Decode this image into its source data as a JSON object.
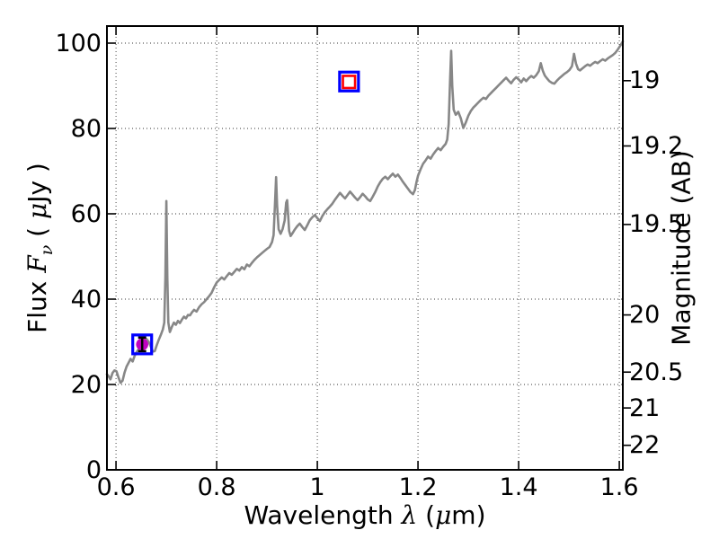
{
  "chart_data": {
    "type": "line",
    "title": "",
    "xlabel_parts": [
      "Wavelength ",
      "λ",
      " (",
      "μ",
      "m)"
    ],
    "ylabel_left_parts": [
      "Flux ",
      "F",
      "ν",
      " ( ",
      "μ",
      "Jy )"
    ],
    "ylabel_right": "Magnitude (AB)",
    "xlim": [
      0.582,
      1.607
    ],
    "ylim_flux": [
      0,
      104
    ],
    "grid": "dotted",
    "legend": "none",
    "x_ticks": [
      {
        "value": 0.6,
        "label": "0.6"
      },
      {
        "value": 0.8,
        "label": "0.8"
      },
      {
        "value": 1.0,
        "label": "1"
      },
      {
        "value": 1.2,
        "label": "1.2"
      },
      {
        "value": 1.4,
        "label": "1.4"
      },
      {
        "value": 1.6,
        "label": "1.6"
      }
    ],
    "y_ticks_left": [
      {
        "value": 0,
        "label": "0"
      },
      {
        "value": 20,
        "label": "20"
      },
      {
        "value": 40,
        "label": "40"
      },
      {
        "value": 60,
        "label": "60"
      },
      {
        "value": 80,
        "label": "80"
      },
      {
        "value": 100,
        "label": "100"
      }
    ],
    "y_ticks_right": [
      {
        "label": "19",
        "flux": 91.2
      },
      {
        "label": "19.2",
        "flux": 75.9
      },
      {
        "label": "19.5",
        "flux": 57.5
      },
      {
        "label": "20",
        "flux": 36.3
      },
      {
        "label": "20.5",
        "flux": 22.9
      },
      {
        "label": "21",
        "flux": 14.5
      },
      {
        "label": "22",
        "flux": 5.75
      }
    ],
    "colors": {
      "spectrum": "#878787",
      "frame": "#000000",
      "grid": "#000000",
      "blue_square": "#0000ff",
      "magenta_circle": "#bf00bf",
      "red_square": "#ff0000",
      "errorbar": "#000000"
    },
    "series": [
      {
        "name": "spectrum",
        "type": "line",
        "color": "#878787",
        "points": [
          [
            0.582,
            22.4
          ],
          [
            0.585,
            22.0
          ],
          [
            0.589,
            21.2
          ],
          [
            0.593,
            22.7
          ],
          [
            0.597,
            23.3
          ],
          [
            0.601,
            23.1
          ],
          [
            0.605,
            21.6
          ],
          [
            0.609,
            20.4
          ],
          [
            0.613,
            20.9
          ],
          [
            0.617,
            22.8
          ],
          [
            0.621,
            24.2
          ],
          [
            0.625,
            25.1
          ],
          [
            0.629,
            26.0
          ],
          [
            0.633,
            25.4
          ],
          [
            0.637,
            26.7
          ],
          [
            0.641,
            27.6
          ],
          [
            0.645,
            28.3
          ],
          [
            0.649,
            29.2
          ],
          [
            0.653,
            30.1
          ],
          [
            0.657,
            30.8
          ],
          [
            0.661,
            30.6
          ],
          [
            0.665,
            30.0
          ],
          [
            0.669,
            28.9
          ],
          [
            0.673,
            27.7
          ],
          [
            0.677,
            27.8
          ],
          [
            0.681,
            29.2
          ],
          [
            0.685,
            30.5
          ],
          [
            0.689,
            31.6
          ],
          [
            0.693,
            32.9
          ],
          [
            0.696,
            34.5
          ],
          [
            0.698,
            45.0
          ],
          [
            0.7,
            63.0
          ],
          [
            0.702,
            45.0
          ],
          [
            0.704,
            34.5
          ],
          [
            0.707,
            32.3
          ],
          [
            0.711,
            33.5
          ],
          [
            0.715,
            34.5
          ],
          [
            0.719,
            34.0
          ],
          [
            0.723,
            34.9
          ],
          [
            0.727,
            34.4
          ],
          [
            0.731,
            35.2
          ],
          [
            0.735,
            35.9
          ],
          [
            0.739,
            35.5
          ],
          [
            0.743,
            36.3
          ],
          [
            0.747,
            36.2
          ],
          [
            0.751,
            36.9
          ],
          [
            0.755,
            37.5
          ],
          [
            0.76,
            37.1
          ],
          [
            0.765,
            38.1
          ],
          [
            0.77,
            38.8
          ],
          [
            0.775,
            39.3
          ],
          [
            0.78,
            40.0
          ],
          [
            0.785,
            40.7
          ],
          [
            0.79,
            41.5
          ],
          [
            0.795,
            42.8
          ],
          [
            0.8,
            43.9
          ],
          [
            0.805,
            44.5
          ],
          [
            0.81,
            45.1
          ],
          [
            0.815,
            44.6
          ],
          [
            0.82,
            45.4
          ],
          [
            0.825,
            46.1
          ],
          [
            0.83,
            45.7
          ],
          [
            0.835,
            46.4
          ],
          [
            0.84,
            47.1
          ],
          [
            0.845,
            46.7
          ],
          [
            0.85,
            47.5
          ],
          [
            0.855,
            47.0
          ],
          [
            0.86,
            48.1
          ],
          [
            0.865,
            47.7
          ],
          [
            0.87,
            48.5
          ],
          [
            0.875,
            49.2
          ],
          [
            0.88,
            49.8
          ],
          [
            0.885,
            50.3
          ],
          [
            0.89,
            50.8
          ],
          [
            0.895,
            51.3
          ],
          [
            0.9,
            51.8
          ],
          [
            0.905,
            52.2
          ],
          [
            0.91,
            53.4
          ],
          [
            0.913,
            55.0
          ],
          [
            0.916,
            62.5
          ],
          [
            0.918,
            68.6
          ],
          [
            0.92,
            62.0
          ],
          [
            0.923,
            56.4
          ],
          [
            0.927,
            55.3
          ],
          [
            0.931,
            56.4
          ],
          [
            0.935,
            58.4
          ],
          [
            0.938,
            62.6
          ],
          [
            0.94,
            63.2
          ],
          [
            0.942,
            59.8
          ],
          [
            0.944,
            56.0
          ],
          [
            0.947,
            54.8
          ],
          [
            0.951,
            55.5
          ],
          [
            0.955,
            56.3
          ],
          [
            0.96,
            57.1
          ],
          [
            0.965,
            57.7
          ],
          [
            0.97,
            56.9
          ],
          [
            0.975,
            56.2
          ],
          [
            0.98,
            57.3
          ],
          [
            0.985,
            58.5
          ],
          [
            0.99,
            59.2
          ],
          [
            0.995,
            59.7
          ],
          [
            1.0,
            59.0
          ],
          [
            1.005,
            58.3
          ],
          [
            1.01,
            59.5
          ],
          [
            1.015,
            60.4
          ],
          [
            1.02,
            61.1
          ],
          [
            1.025,
            61.7
          ],
          [
            1.03,
            62.4
          ],
          [
            1.035,
            63.3
          ],
          [
            1.04,
            64.1
          ],
          [
            1.045,
            64.9
          ],
          [
            1.05,
            64.2
          ],
          [
            1.055,
            63.6
          ],
          [
            1.06,
            64.4
          ],
          [
            1.065,
            65.2
          ],
          [
            1.07,
            64.5
          ],
          [
            1.075,
            63.8
          ],
          [
            1.08,
            63.2
          ],
          [
            1.085,
            63.9
          ],
          [
            1.09,
            64.7
          ],
          [
            1.095,
            64.1
          ],
          [
            1.1,
            63.4
          ],
          [
            1.105,
            63.0
          ],
          [
            1.11,
            64.0
          ],
          [
            1.115,
            65.1
          ],
          [
            1.12,
            66.4
          ],
          [
            1.125,
            67.4
          ],
          [
            1.13,
            68.2
          ],
          [
            1.135,
            68.7
          ],
          [
            1.14,
            68.1
          ],
          [
            1.145,
            68.8
          ],
          [
            1.15,
            69.4
          ],
          [
            1.155,
            68.7
          ],
          [
            1.16,
            69.2
          ],
          [
            1.165,
            68.4
          ],
          [
            1.17,
            67.5
          ],
          [
            1.175,
            66.7
          ],
          [
            1.18,
            65.9
          ],
          [
            1.185,
            65.1
          ],
          [
            1.19,
            64.6
          ],
          [
            1.194,
            65.6
          ],
          [
            1.197,
            67.4
          ],
          [
            1.2,
            68.9
          ],
          [
            1.205,
            70.4
          ],
          [
            1.21,
            71.7
          ],
          [
            1.215,
            72.5
          ],
          [
            1.22,
            73.4
          ],
          [
            1.225,
            72.9
          ],
          [
            1.23,
            73.9
          ],
          [
            1.235,
            74.7
          ],
          [
            1.24,
            75.4
          ],
          [
            1.245,
            74.9
          ],
          [
            1.25,
            75.7
          ],
          [
            1.255,
            76.4
          ],
          [
            1.258,
            77.4
          ],
          [
            1.261,
            81.0
          ],
          [
            1.264,
            92.0
          ],
          [
            1.266,
            98.2
          ],
          [
            1.268,
            90.0
          ],
          [
            1.271,
            84.4
          ],
          [
            1.275,
            83.2
          ],
          [
            1.28,
            83.9
          ],
          [
            1.285,
            82.4
          ],
          [
            1.29,
            80.1
          ],
          [
            1.295,
            81.4
          ],
          [
            1.3,
            83.0
          ],
          [
            1.305,
            84.1
          ],
          [
            1.31,
            84.9
          ],
          [
            1.315,
            85.5
          ],
          [
            1.32,
            86.1
          ],
          [
            1.325,
            86.7
          ],
          [
            1.33,
            87.2
          ],
          [
            1.335,
            86.9
          ],
          [
            1.34,
            87.7
          ],
          [
            1.345,
            88.3
          ],
          [
            1.35,
            88.9
          ],
          [
            1.355,
            89.5
          ],
          [
            1.36,
            90.1
          ],
          [
            1.365,
            90.7
          ],
          [
            1.37,
            91.3
          ],
          [
            1.375,
            91.9
          ],
          [
            1.38,
            91.2
          ],
          [
            1.385,
            90.6
          ],
          [
            1.39,
            91.4
          ],
          [
            1.395,
            92.0
          ],
          [
            1.4,
            91.5
          ],
          [
            1.405,
            90.8
          ],
          [
            1.41,
            91.7
          ],
          [
            1.415,
            91.1
          ],
          [
            1.42,
            91.8
          ],
          [
            1.425,
            92.3
          ],
          [
            1.43,
            91.9
          ],
          [
            1.435,
            92.5
          ],
          [
            1.44,
            93.4
          ],
          [
            1.444,
            95.3
          ],
          [
            1.448,
            93.5
          ],
          [
            1.452,
            92.4
          ],
          [
            1.456,
            91.8
          ],
          [
            1.461,
            91.1
          ],
          [
            1.466,
            90.7
          ],
          [
            1.471,
            90.5
          ],
          [
            1.476,
            91.2
          ],
          [
            1.481,
            91.8
          ],
          [
            1.486,
            92.3
          ],
          [
            1.491,
            92.8
          ],
          [
            1.496,
            93.2
          ],
          [
            1.501,
            93.7
          ],
          [
            1.506,
            94.6
          ],
          [
            1.51,
            97.5
          ],
          [
            1.514,
            95.2
          ],
          [
            1.518,
            93.9
          ],
          [
            1.522,
            93.6
          ],
          [
            1.527,
            94.1
          ],
          [
            1.532,
            94.6
          ],
          [
            1.537,
            95.0
          ],
          [
            1.542,
            94.7
          ],
          [
            1.547,
            95.2
          ],
          [
            1.552,
            95.6
          ],
          [
            1.557,
            95.3
          ],
          [
            1.562,
            95.8
          ],
          [
            1.567,
            96.2
          ],
          [
            1.572,
            95.9
          ],
          [
            1.577,
            96.4
          ],
          [
            1.582,
            96.8
          ],
          [
            1.587,
            97.2
          ],
          [
            1.592,
            97.7
          ],
          [
            1.597,
            98.5
          ],
          [
            1.602,
            99.4
          ],
          [
            1.607,
            100.4
          ]
        ]
      },
      {
        "name": "blue-open-squares",
        "type": "open-square",
        "color": "#0000ff",
        "points": [
          [
            0.652,
            29.4
          ],
          [
            1.063,
            91.0
          ]
        ]
      },
      {
        "name": "magenta-filled-circle",
        "type": "filled-circle",
        "color": "#bf00bf",
        "points": [
          [
            0.652,
            29.4
          ]
        ],
        "yerr": 1.6,
        "errorbar_color": "#000000"
      },
      {
        "name": "red-open-square",
        "type": "open-square-small",
        "color": "#ff0000",
        "points": [
          [
            1.063,
            91.0
          ]
        ]
      }
    ]
  }
}
